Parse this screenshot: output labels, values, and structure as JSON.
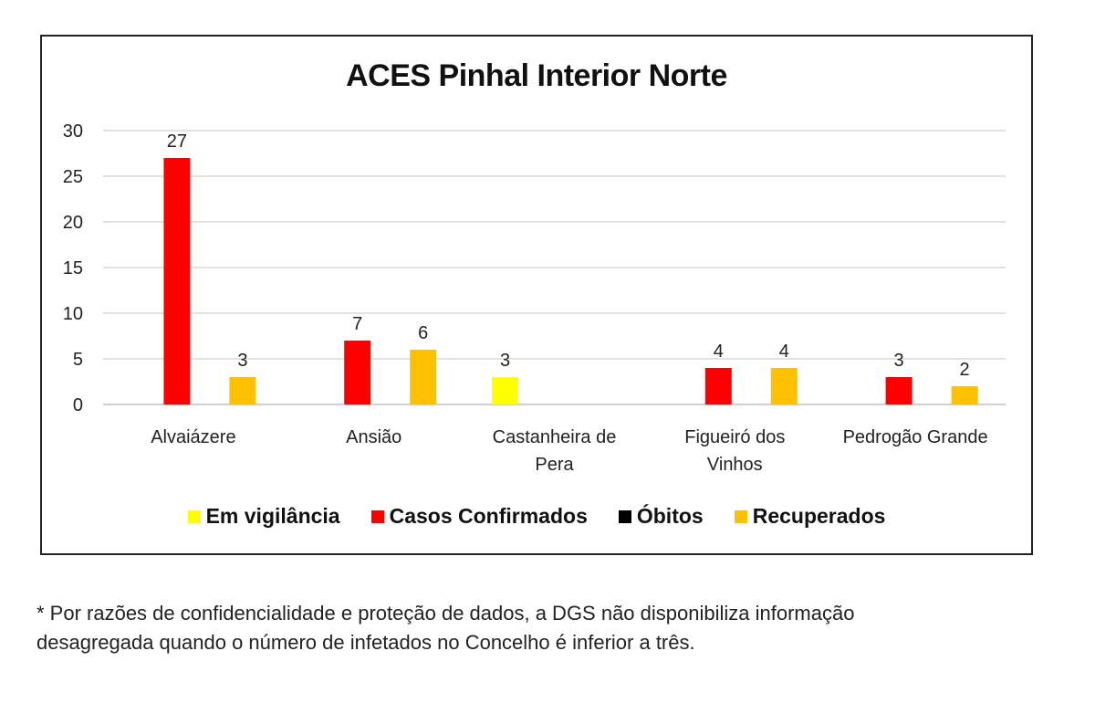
{
  "chart_data": {
    "type": "bar",
    "title": "ACES Pinhal Interior Norte",
    "categories": [
      "Alvaiázere",
      "Ansião",
      "Castanheira de Pera",
      "Figueiró dos Vinhos",
      "Pedrogão Grande"
    ],
    "category_lines": [
      [
        "Alvaiázere"
      ],
      [
        "Ansião"
      ],
      [
        "Castanheira de",
        "Pera"
      ],
      [
        "Figueiró dos",
        "Vinhos"
      ],
      [
        "Pedrogão Grande"
      ]
    ],
    "series": [
      {
        "name": "Em vigilância",
        "color": "#FFFF00",
        "values": [
          null,
          null,
          3,
          null,
          null
        ]
      },
      {
        "name": "Casos Confirmados",
        "color": "#FF0000",
        "values": [
          27,
          7,
          null,
          4,
          3
        ]
      },
      {
        "name": "Óbitos",
        "color": "#000000",
        "values": [
          null,
          null,
          null,
          null,
          null
        ]
      },
      {
        "name": "Recuperados",
        "color": "#FFC000",
        "values": [
          3,
          6,
          null,
          4,
          2
        ]
      }
    ],
    "ylim": [
      0,
      30
    ],
    "yticks": [
      0,
      5,
      10,
      15,
      20,
      25,
      30
    ],
    "grid": true,
    "legend": "bottom",
    "xlabel": "",
    "ylabel": ""
  },
  "footnote": {
    "line1": "* Por razões de confidencialidade e proteção de dados, a DGS não disponibiliza informação",
    "line2": "desagregada quando o número de infetados no Concelho é inferior a três."
  }
}
